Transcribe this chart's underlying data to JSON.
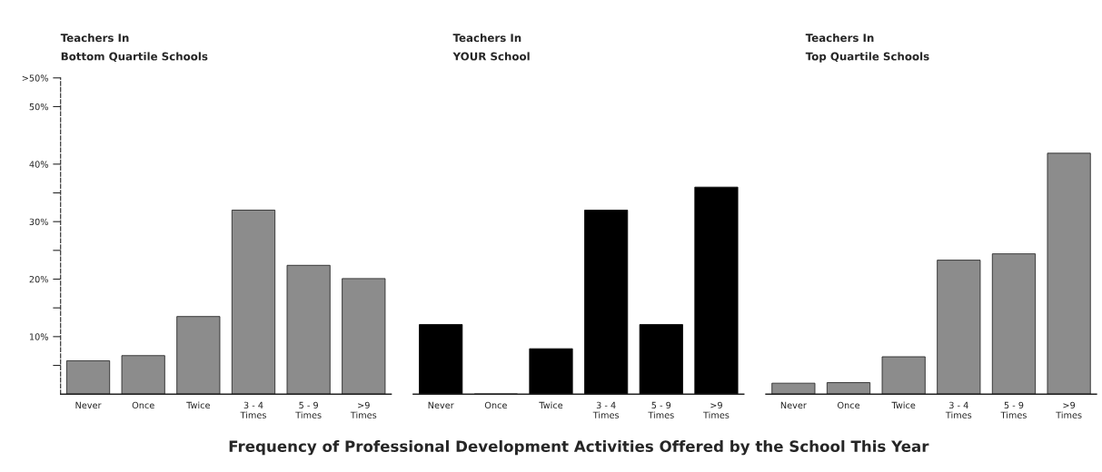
{
  "chart_data": [
    {
      "type": "bar",
      "title": "Teachers In\nBottom Quartile Schools",
      "categories": [
        "Never",
        "Once",
        "Twice",
        "3 - 4\nTimes",
        "5 - 9\nTimes",
        ">9\nTimes"
      ],
      "series": [
        {
          "color": "#8c8c8c",
          "values": [
            5.8,
            6.7,
            13.5,
            32.0,
            22.4,
            20.1
          ]
        }
      ],
      "ylim": [
        0,
        55
      ],
      "yticks": [
        {
          "value": 5,
          "label": null
        },
        {
          "value": 10,
          "label": "10%"
        },
        {
          "value": 15,
          "label": null
        },
        {
          "value": 20,
          "label": "20%"
        },
        {
          "value": 25,
          "label": null
        },
        {
          "value": 30,
          "label": "30%"
        },
        {
          "value": 35,
          "label": null
        },
        {
          "value": 40,
          "label": "40%"
        },
        {
          "value": 50,
          "label": "50%"
        },
        {
          "value": 55,
          "label": ">50%"
        }
      ],
      "grid": false
    },
    {
      "type": "bar",
      "title": "Teachers In\nYOUR School",
      "xlabel": "Frequency of Professional Development Activities Offered by the School This Year",
      "categories": [
        "Never",
        "Once",
        "Twice",
        "3 - 4\nTimes",
        "5 - 9\nTimes",
        ">9\nTimes"
      ],
      "series": [
        {
          "color": "#000000",
          "values": [
            12.1,
            0,
            7.9,
            32.0,
            12.1,
            36.0
          ]
        }
      ],
      "ylim": [
        0,
        55
      ],
      "tick_labels": "x",
      "grid": false
    },
    {
      "type": "bar",
      "title": "Teachers In\nTop Quartile Schools",
      "categories": [
        "Never",
        "Once",
        "Twice",
        "3 - 4\nTimes",
        "5 - 9\nTimes",
        ">9\nTimes"
      ],
      "series": [
        {
          "color": "#8c8c8c",
          "values": [
            1.9,
            2.0,
            6.5,
            23.3,
            24.4,
            41.9
          ]
        }
      ],
      "ylim": [
        0,
        55
      ],
      "tick_labels": "x",
      "grid": false
    }
  ]
}
